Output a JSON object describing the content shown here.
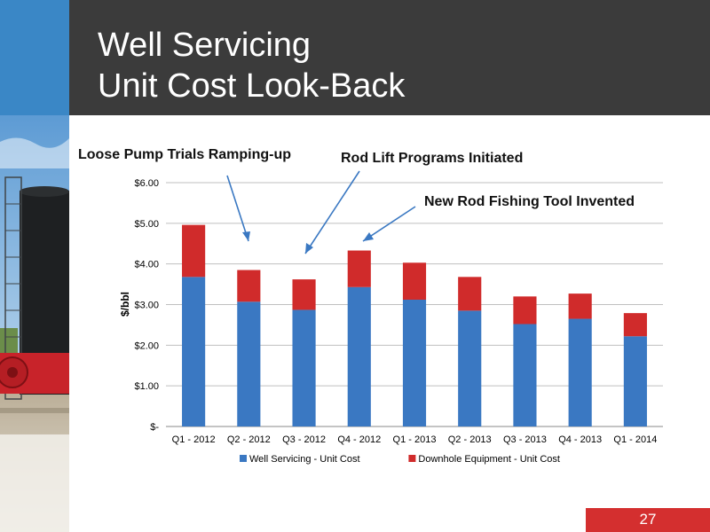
{
  "slide": {
    "title_line1": "Well Servicing",
    "title_line2": "Unit Cost Look-Back",
    "page_number": "27",
    "colors": {
      "header": "#3b3b3b",
      "accent_blue": "#3a87c6",
      "accent_red": "#d42f2f"
    }
  },
  "annotations": [
    "Loose Pump Trials Ramping-up",
    "Rod Lift Programs Initiated",
    "New Rod Fishing Tool Invented"
  ],
  "chart_data": {
    "type": "bar",
    "stacked": true,
    "categories": [
      "Q1 - 2012",
      "Q2 - 2012",
      "Q3 - 2012",
      "Q4 - 2012",
      "Q1 - 2013",
      "Q2 - 2013",
      "Q3 - 2013",
      "Q4 - 2013",
      "Q1 - 2014"
    ],
    "series": [
      {
        "name": "Well Servicing - Unit Cost",
        "color": "#3a78c2",
        "values": [
          3.68,
          3.07,
          2.87,
          3.43,
          3.12,
          2.85,
          2.52,
          2.65,
          2.22
        ]
      },
      {
        "name": "Downhole Equipment - Unit Cost",
        "color": "#d02b2b",
        "values": [
          1.28,
          0.78,
          0.75,
          0.9,
          0.91,
          0.83,
          0.68,
          0.62,
          0.57
        ]
      }
    ],
    "ylabel": "$/bbl",
    "ylim": [
      0,
      6
    ],
    "yticks": [
      "$-",
      "$1.00",
      "$2.00",
      "$3.00",
      "$4.00",
      "$5.00",
      "$6.00"
    ],
    "grid": true,
    "legend": "bottom"
  }
}
